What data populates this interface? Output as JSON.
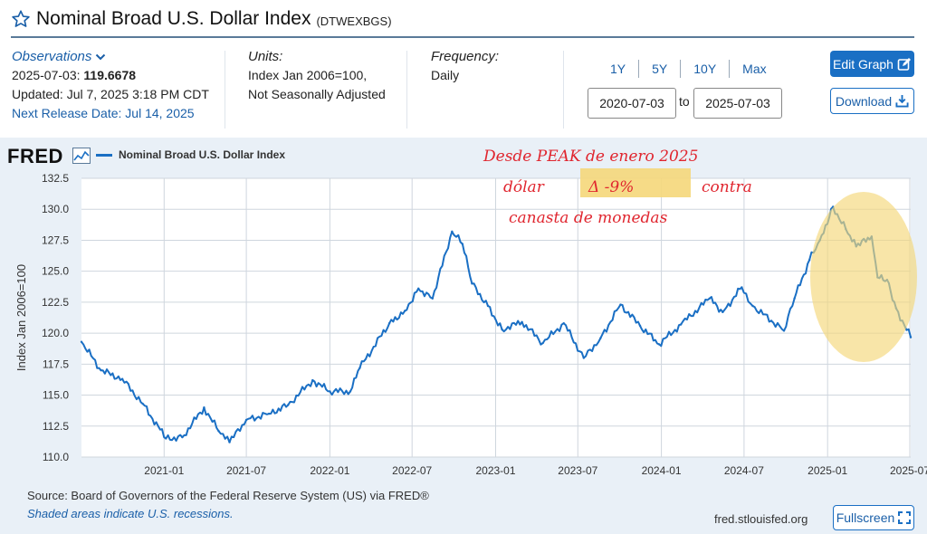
{
  "header": {
    "title": "Nominal Broad U.S. Dollar Index",
    "series_id": "(DTWEXBGS)"
  },
  "meta": {
    "observations_label": "Observations",
    "observation_date": "2025-07-03:",
    "observation_value": "119.6678",
    "updated": "Updated: Jul 7, 2025 3:18 PM CDT",
    "next_release": "Next Release Date: Jul 14, 2025",
    "units_label": "Units:",
    "units_line1": "Index Jan 2006=100,",
    "units_line2": "Not Seasonally Adjusted",
    "frequency_label": "Frequency:",
    "frequency_value": "Daily"
  },
  "controls": {
    "ranges": [
      "1Y",
      "5Y",
      "10Y",
      "Max"
    ],
    "start_date": "2020-07-03",
    "to_label": "to",
    "end_date": "2025-07-03",
    "edit_graph": "Edit Graph",
    "download": "Download"
  },
  "graph": {
    "logo": "FRED",
    "legend": "Nominal Broad U.S. Dollar Index",
    "annotation": {
      "line1": "Desde PEAK de enero 2025",
      "line2a": "dólar",
      "line2_highlight": "Δ -9%",
      "line2b": "contra",
      "line3": "canasta de monedas",
      "highlight_color": "#f5d77a",
      "ink_color": "#e0262f"
    }
  },
  "chart_data": {
    "type": "line",
    "ylabel": "Index Jan 2006=100",
    "y_ticks": [
      "110.0",
      "112.5",
      "115.0",
      "117.5",
      "120.0",
      "122.5",
      "125.0",
      "127.5",
      "130.0",
      "132.5"
    ],
    "ylim": [
      110,
      132.5
    ],
    "x_ticks": [
      "2021-01",
      "2021-07",
      "2022-01",
      "2022-07",
      "2023-01",
      "2023-07",
      "2024-01",
      "2024-07",
      "2025-01",
      "2025-07"
    ],
    "xlim": [
      "2020-07-03",
      "2025-07-03"
    ],
    "grid": true,
    "line_color": "#1a6fc4",
    "series": [
      {
        "name": "Nominal Broad U.S. Dollar Index",
        "x": [
          "2020-07-03",
          "2020-08-15",
          "2020-10-01",
          "2020-11-15",
          "2021-01-05",
          "2021-02-10",
          "2021-03-30",
          "2021-05-01",
          "2021-05-25",
          "2021-07-01",
          "2021-08-20",
          "2021-10-01",
          "2021-11-24",
          "2022-01-01",
          "2022-02-15",
          "2022-03-08",
          "2022-05-12",
          "2022-06-15",
          "2022-07-15",
          "2022-08-15",
          "2022-09-27",
          "2022-10-20",
          "2022-11-10",
          "2022-12-15",
          "2023-01-15",
          "2023-02-28",
          "2023-04-15",
          "2023-05-31",
          "2023-07-14",
          "2023-08-20",
          "2023-10-03",
          "2023-11-15",
          "2023-12-27",
          "2024-02-13",
          "2024-04-16",
          "2024-05-15",
          "2024-06-26",
          "2024-07-20",
          "2024-08-30",
          "2024-09-27",
          "2024-10-20",
          "2024-11-22",
          "2024-12-15",
          "2025-01-13",
          "2025-02-10",
          "2025-03-05",
          "2025-04-08",
          "2025-04-21",
          "2025-05-12",
          "2025-06-01",
          "2025-07-03"
        ],
        "values": [
          119.3,
          117.0,
          116.3,
          114.3,
          111.5,
          111.6,
          114.0,
          112.1,
          111.2,
          113.0,
          113.5,
          114.2,
          116.2,
          115.3,
          115.3,
          117.2,
          120.8,
          121.8,
          123.6,
          122.8,
          128.2,
          127.2,
          124.0,
          122.2,
          120.3,
          120.9,
          119.2,
          120.8,
          118.0,
          119.6,
          122.3,
          120.6,
          119.1,
          120.7,
          122.8,
          121.7,
          123.7,
          122.2,
          121.0,
          120.2,
          122.8,
          125.9,
          127.5,
          130.2,
          128.4,
          127.0,
          127.8,
          124.5,
          124.3,
          122.0,
          119.67
        ]
      }
    ]
  }
}
